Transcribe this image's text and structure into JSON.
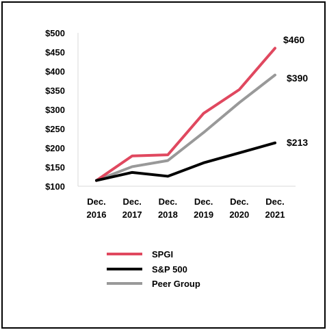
{
  "chart_data": {
    "type": "line",
    "categories": [
      [
        "Dec.",
        "2016"
      ],
      [
        "Dec.",
        "2017"
      ],
      [
        "Dec.",
        "2018"
      ],
      [
        "Dec.",
        "2019"
      ],
      [
        "Dec.",
        "2020"
      ],
      [
        "Dec.",
        "2021"
      ]
    ],
    "y_tick_labels": [
      "$100",
      "$150",
      "$200",
      "$250",
      "$300",
      "$350",
      "$400",
      "$450",
      "$500"
    ],
    "ylim": [
      100,
      500
    ],
    "ytick_step": 50,
    "grid": false,
    "legend_position": "bottom-center",
    "series": [
      {
        "name": "SPGI",
        "color": "#e0485f",
        "values": [
          115,
          179,
          182,
          290,
          352,
          460
        ],
        "end_label": "$460"
      },
      {
        "name": "S&P 500",
        "color": "#000000",
        "values": [
          115,
          136,
          126,
          161,
          187,
          213
        ],
        "end_label": "$213"
      },
      {
        "name": "Peer Group",
        "color": "#999999",
        "values": [
          115,
          151,
          167,
          240,
          318,
          390
        ],
        "end_label": "$390"
      }
    ]
  }
}
